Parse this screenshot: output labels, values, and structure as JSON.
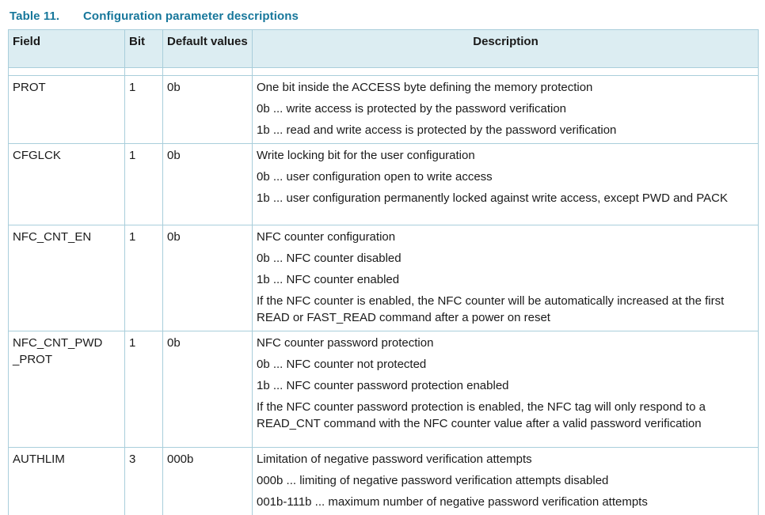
{
  "title": {
    "label": "Table 11.",
    "caption": "Configuration parameter descriptions"
  },
  "table": {
    "headers": {
      "field": "Field",
      "bit": "Bit",
      "default": "Default values",
      "description": "Description"
    },
    "rows": [
      {
        "field": "PROT",
        "bit": "1",
        "default": "0b",
        "description": [
          "One bit inside the ACCESS byte defining the memory protection",
          "0b ... write access is protected by the password verification",
          "1b ... read and write access is protected by the password verification"
        ]
      },
      {
        "field": "CFGLCK",
        "bit": "1",
        "default": "0b",
        "description": [
          "Write locking bit for the user configuration",
          "0b ... user configuration open to write access",
          "1b ... user configuration permanently locked against write access, except PWD and PACK"
        ]
      },
      {
        "field": "NFC_CNT_EN",
        "bit": "1",
        "default": "0b",
        "description": [
          "NFC counter configuration",
          "0b ... NFC counter disabled",
          "1b ... NFC counter enabled",
          "If the NFC counter is enabled, the NFC counter will be automatically increased at the first READ or FAST_READ command after a power on reset"
        ]
      },
      {
        "field": "NFC_CNT_PWD_PROT",
        "bit": "1",
        "default": "0b",
        "description": [
          "NFC counter password protection",
          "0b ... NFC counter not protected",
          "1b ... NFC counter password protection enabled",
          "If the NFC counter password protection is enabled, the NFC tag will only respond to a READ_CNT command with the NFC counter value after a valid password verification"
        ]
      },
      {
        "field": "AUTHLIM",
        "bit": "3",
        "default": "000b",
        "description": [
          "Limitation of negative password verification attempts",
          "000b ... limiting of negative password verification attempts disabled",
          "001b-111b ... maximum number of negative password verification attempts"
        ]
      }
    ]
  },
  "colors": {
    "accent_teal": "#17779b",
    "header_bg": "#dcedf2",
    "border": "#a9cedb"
  }
}
